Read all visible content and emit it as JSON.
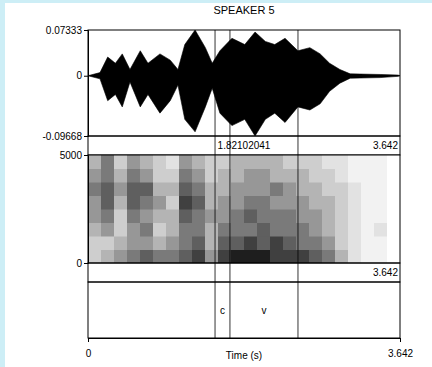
{
  "chart_data": [
    {
      "type": "area",
      "title": "SPEAKER 5",
      "x": [
        0,
        0.14,
        0.23,
        0.32,
        0.4,
        0.49,
        0.61,
        0.7,
        0.84,
        0.96,
        1.05,
        1.13,
        1.25,
        1.37,
        1.45,
        1.54,
        1.68,
        1.83,
        1.95,
        2.07,
        2.18,
        2.3,
        2.45,
        2.59,
        2.71,
        2.82,
        2.94,
        3.06,
        3.41,
        3.62,
        3.642
      ],
      "values": [
        0,
        0.005,
        0.03,
        0.02,
        0.035,
        0.01,
        0.04,
        0.02,
        0.035,
        0.025,
        0.01,
        0.05,
        0.0733,
        0.045,
        0.02,
        0.04,
        0.06,
        0.05,
        0.07,
        0.055,
        0.05,
        0.06,
        0.04,
        0.045,
        0.035,
        0.02,
        0.01,
        0.003,
        0.002,
        0.001,
        0
      ],
      "lower": [
        0,
        -0.005,
        -0.04,
        -0.03,
        -0.05,
        -0.01,
        -0.05,
        -0.03,
        -0.06,
        -0.04,
        -0.015,
        -0.07,
        -0.09,
        -0.05,
        -0.02,
        -0.06,
        -0.08,
        -0.07,
        -0.0966,
        -0.07,
        -0.06,
        -0.075,
        -0.05,
        -0.055,
        -0.045,
        -0.025,
        -0.012,
        -0.004,
        -0.003,
        -0.001,
        0
      ],
      "color": "#000000",
      "xlim": [
        0,
        3.642
      ],
      "ylim": [
        -0.09668,
        0.07333
      ],
      "yticks": [
        -0.09668,
        0,
        0.07333
      ],
      "cursor": 1.82102041
    },
    {
      "type": "heatmap",
      "xlim": [
        0,
        3.642
      ],
      "ylim": [
        0,
        5000
      ],
      "yticks": [
        0,
        5000
      ],
      "cells": [
        [
          0.3,
          0.3,
          0.4,
          0.5,
          0.5,
          0.6,
          0.5,
          0.4
        ],
        [
          0.4,
          0.3,
          0.5,
          0.6,
          0.7,
          0.7,
          0.6,
          0.6
        ],
        [
          0.5,
          0.4,
          0.3,
          0.3,
          0.4,
          0.5,
          0.4,
          0.3
        ],
        [
          0.6,
          0.5,
          0.5,
          0.6,
          0.7,
          0.7,
          0.6,
          0.5
        ],
        [
          0.7,
          0.5,
          0.6,
          0.5,
          0.6,
          0.7,
          0.5,
          0.4
        ],
        [
          0.6,
          0.4,
          0.3,
          0.4,
          0.5,
          0.4,
          0.3,
          0.3
        ],
        [
          0.6,
          0.5,
          0.4,
          0.4,
          0.3,
          0.4,
          0.3,
          0.2
        ],
        [
          0.7,
          0.6,
          0.6,
          0.7,
          0.8,
          0.7,
          0.6,
          0.5
        ],
        [
          0.8,
          0.7,
          0.6,
          0.6,
          0.7,
          0.6,
          0.5,
          0.4
        ],
        [
          0.5,
          0.4,
          0.4,
          0.5,
          0.4,
          0.4,
          0.3,
          0.3
        ],
        [
          0.8,
          0.7,
          0.6,
          0.5,
          0.5,
          0.4,
          0.4,
          0.3
        ],
        [
          0.9,
          0.7,
          0.6,
          0.6,
          0.5,
          0.5,
          0.4,
          0.4
        ],
        [
          0.9,
          0.8,
          0.6,
          0.7,
          0.6,
          0.5,
          0.5,
          0.4
        ],
        [
          0.9,
          0.7,
          0.7,
          0.6,
          0.6,
          0.5,
          0.5,
          0.4
        ],
        [
          0.8,
          0.8,
          0.6,
          0.6,
          0.5,
          0.6,
          0.4,
          0.4
        ],
        [
          0.8,
          0.7,
          0.6,
          0.6,
          0.5,
          0.5,
          0.4,
          0.3
        ],
        [
          0.8,
          0.6,
          0.6,
          0.5,
          0.5,
          0.4,
          0.4,
          0.3
        ],
        [
          0.7,
          0.6,
          0.5,
          0.5,
          0.4,
          0.4,
          0.3,
          0.3
        ],
        [
          0.6,
          0.5,
          0.4,
          0.4,
          0.4,
          0.3,
          0.3,
          0.2
        ],
        [
          0.4,
          0.3,
          0.3,
          0.3,
          0.3,
          0.3,
          0.2,
          0.2
        ],
        [
          0.2,
          0.2,
          0.2,
          0.2,
          0.2,
          0.2,
          0.1,
          0.1
        ],
        [
          0.1,
          0.1,
          0.1,
          0.1,
          0.1,
          0.1,
          0.1,
          0.1
        ],
        [
          0.1,
          0.1,
          0.2,
          0.1,
          0.1,
          0.1,
          0.1,
          0.1
        ],
        [
          0,
          0,
          0,
          0,
          0,
          0,
          0,
          0
        ]
      ]
    },
    {
      "type": "intervals",
      "xlim": [
        0,
        3.642
      ],
      "xticks": [
        0,
        3.642
      ],
      "xlabel": "Time (s)",
      "boundaries": [
        1.483,
        1.657,
        2.451
      ],
      "labels": [
        null,
        "c",
        "v",
        null
      ]
    }
  ]
}
